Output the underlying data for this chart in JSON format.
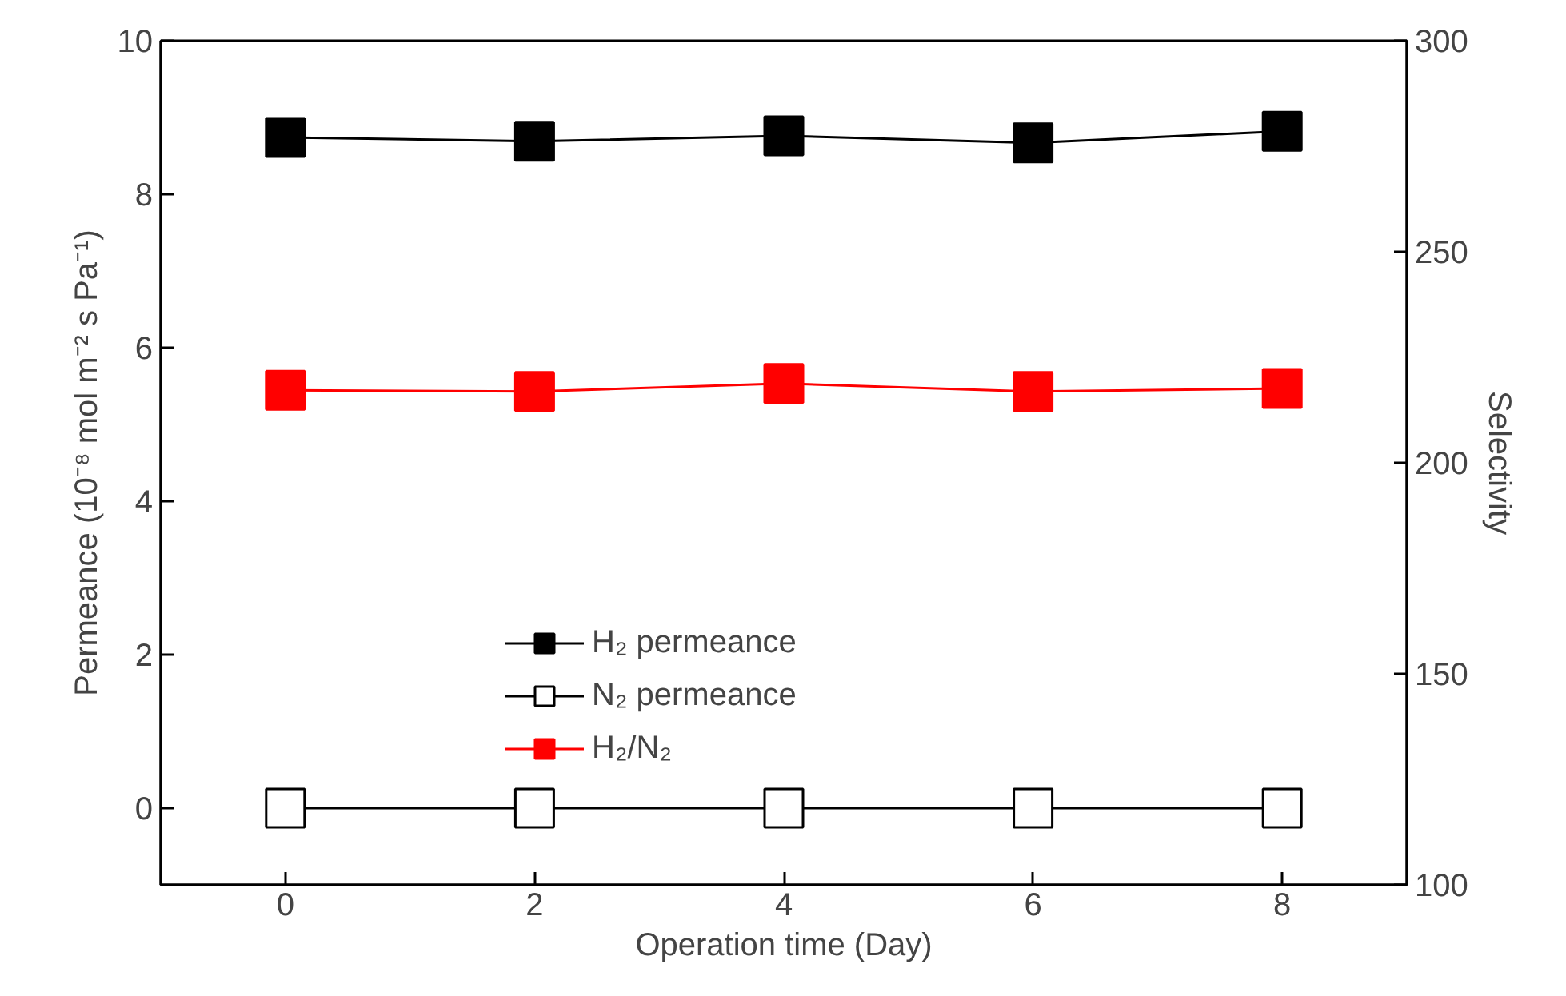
{
  "chart_data": {
    "type": "line",
    "xlabel": "Operation time (Day)",
    "ylabel": "Permeance (10⁻⁸ mol m⁻² s Pa⁻¹)",
    "y2label": "Selectivity",
    "x": [
      0,
      2,
      4,
      6,
      8
    ],
    "xlim": [
      -1,
      9
    ],
    "xticks": [
      0,
      2,
      4,
      6,
      8
    ],
    "ylim": [
      -1,
      10
    ],
    "yticks": [
      0,
      2,
      4,
      6,
      8,
      10
    ],
    "y2lim": [
      100,
      300
    ],
    "y2ticks": [
      100,
      150,
      200,
      250,
      300
    ],
    "marker": "square",
    "legend": "center",
    "grid": false,
    "series": [
      {
        "name": "H₂ permeance",
        "color": "#000000",
        "values": [
          8.74,
          8.69,
          8.76,
          8.67,
          8.82
        ]
      },
      {
        "name": "N₂ permeance",
        "color": "#000000",
        "marker": "square-open",
        "values": [
          0,
          0,
          0,
          0,
          0
        ]
      },
      {
        "name": "H₂/N₂",
        "color": "#ff0000",
        "axis": "y2",
        "values": [
          217.2,
          216.9,
          218.8,
          216.9,
          217.6
        ]
      }
    ]
  }
}
